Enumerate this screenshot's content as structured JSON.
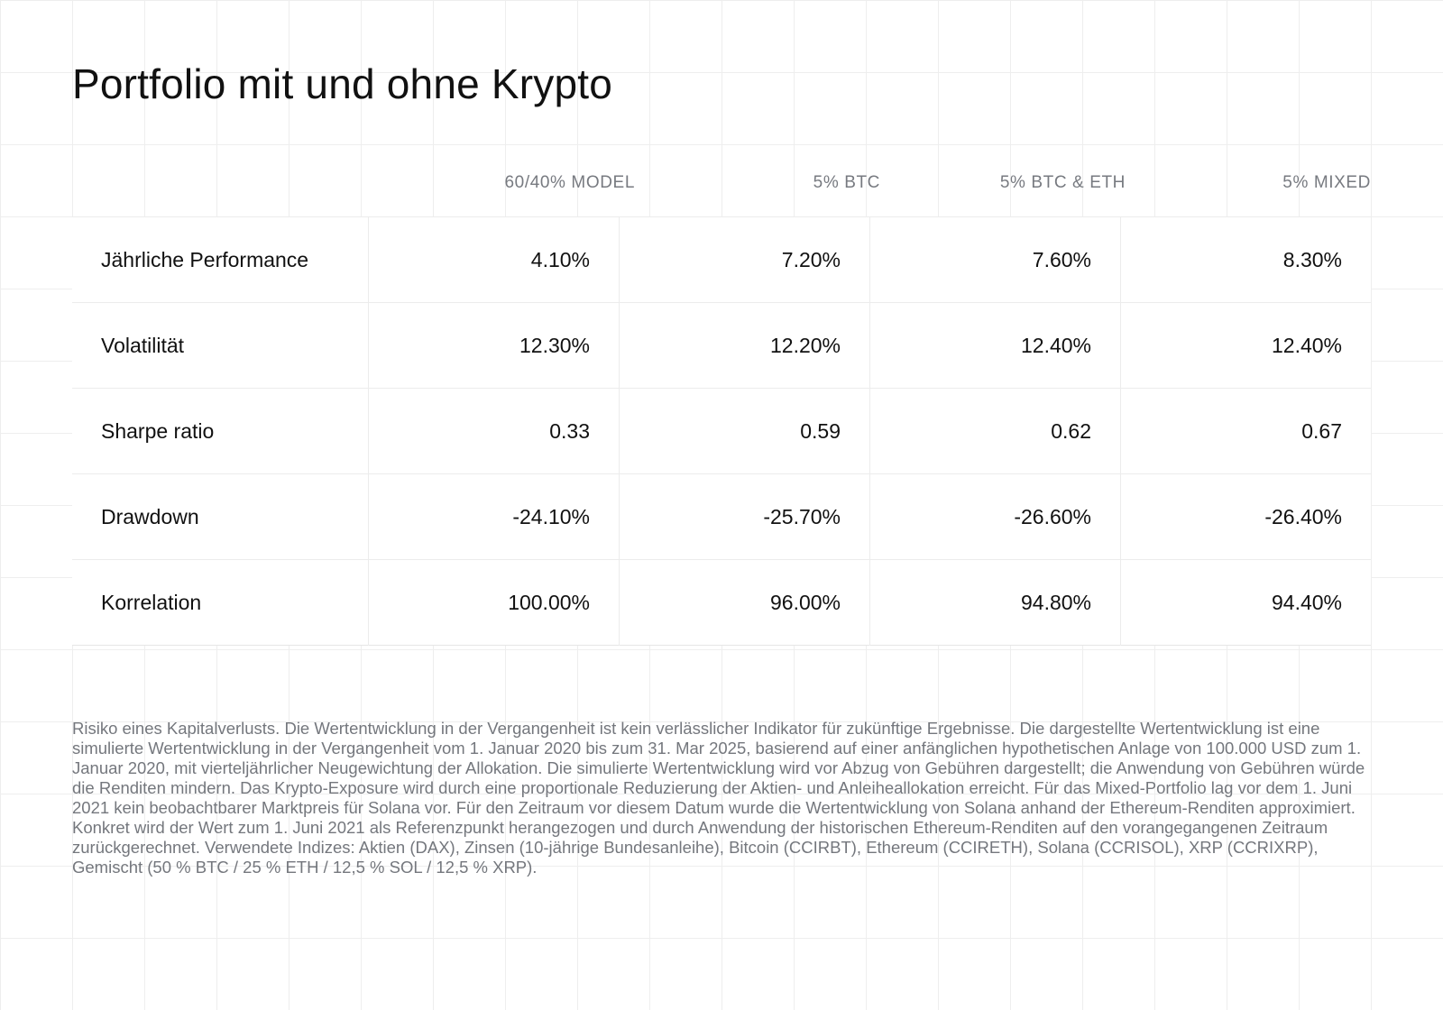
{
  "title": "Portfolio mit und ohne Krypto",
  "columns": [
    "60/40% MODEL",
    "5% BTC",
    "5% BTC & ETH",
    "5% MIXED"
  ],
  "rows": [
    {
      "label": "Jährliche Performance",
      "values": [
        "4.10%",
        "7.20%",
        "7.60%",
        "8.30%"
      ]
    },
    {
      "label": "Volatilität",
      "values": [
        "12.30%",
        "12.20%",
        "12.40%",
        "12.40%"
      ]
    },
    {
      "label": "Sharpe ratio",
      "values": [
        "0.33",
        "0.59",
        "0.62",
        "0.67"
      ]
    },
    {
      "label": "Drawdown",
      "values": [
        "-24.10%",
        "-25.70%",
        "-26.60%",
        "-26.40%"
      ]
    },
    {
      "label": "Korrelation",
      "values": [
        "100.00%",
        "96.00%",
        "94.80%",
        "94.40%"
      ]
    }
  ],
  "disclaimer": "Risiko eines Kapitalverlusts. Die Wertentwicklung in der Vergangenheit ist kein verlässlicher Indikator für zukünftige Ergebnisse. Die dargestellte Wertentwicklung ist eine simulierte Wertentwicklung in der Vergangenheit vom 1. Januar 2020 bis zum 31. Mar 2025, basierend auf einer anfänglichen hypothetischen Anlage von 100.000 USD zum 1. Januar 2020, mit vierteljährlicher Neugewichtung der Allokation. Die simulierte Wertentwicklung wird vor Abzug von Gebühren dargestellt; die Anwendung von Gebühren würde die Renditen mindern. Das Krypto-Exposure wird durch eine proportionale Reduzierung der Aktien- und Anleiheallokation erreicht. Für das Mixed-Portfolio lag vor dem 1. Juni 2021 kein beobachtbarer Marktpreis für Solana vor. Für den Zeitraum vor diesem Datum wurde die Wertentwicklung von Solana anhand der Ethereum-Renditen approximiert. Konkret wird der Wert zum 1. Juni 2021 als Referenzpunkt herangezogen und durch Anwendung der historischen Ethereum-Renditen auf den vorangegangenen Zeitraum zurückgerechnet. Verwendete Indizes: Aktien (DAX), Zinsen (10-jährige Bundesanleihe), Bitcoin (CCIRBT), Ethereum (CCIRETH), Solana (CCRISOL), XRP (CCRIXRP), Gemischt (50 % BTC / 25 % ETH / 12,5 % SOL / 12,5 % XRP)."
}
